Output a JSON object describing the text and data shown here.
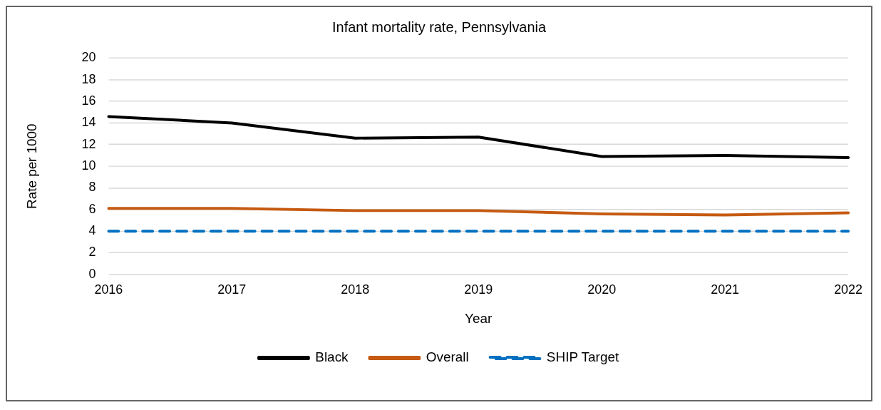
{
  "chart_data": {
    "type": "line",
    "title": "Infant mortality rate, Pennsylvania",
    "xlabel": "Year",
    "ylabel": "Rate per 1000",
    "categories": [
      "2016",
      "2017",
      "2018",
      "2019",
      "2020",
      "2021",
      "2022"
    ],
    "series": [
      {
        "name": "Black",
        "color": "#000000",
        "values": [
          14.6,
          14.0,
          12.6,
          12.7,
          10.9,
          11.0,
          10.8
        ]
      },
      {
        "name": "Overall",
        "color": "#c55a11",
        "values": [
          6.1,
          6.1,
          5.9,
          5.9,
          5.6,
          5.5,
          5.7
        ]
      },
      {
        "name": "SHIP Target",
        "color": "#0070c0",
        "line_style": "dashed",
        "values": [
          4,
          4,
          4,
          4,
          4,
          4,
          4
        ]
      }
    ],
    "ylim": [
      0,
      20
    ],
    "yticks": [
      0,
      2,
      4,
      6,
      8,
      10,
      12,
      14,
      16,
      18,
      20
    ],
    "grid": "y",
    "legend": "bottom",
    "marker": "none"
  }
}
